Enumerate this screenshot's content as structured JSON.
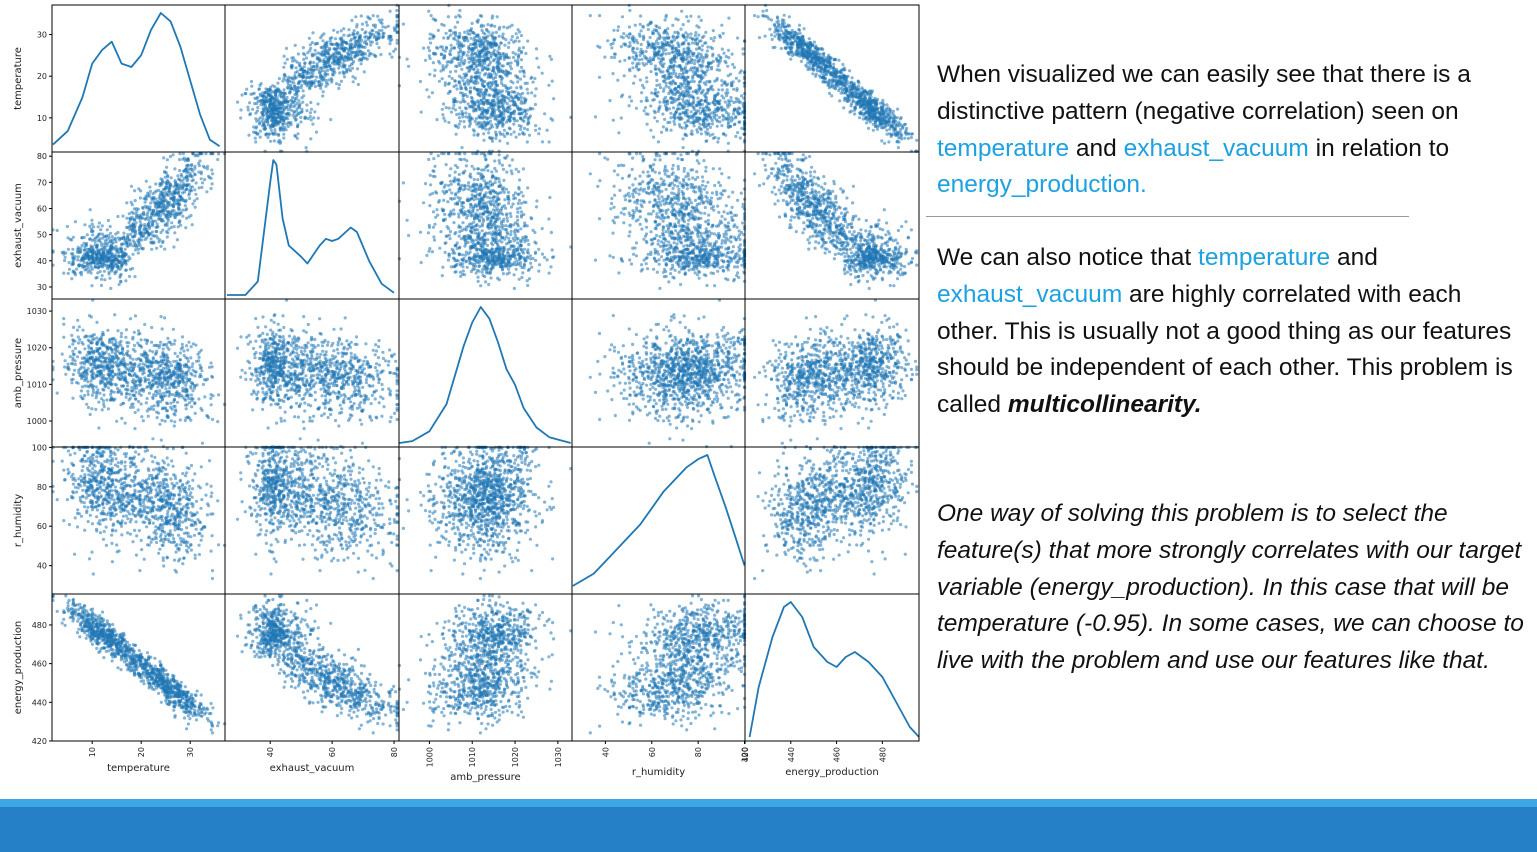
{
  "chart_data": {
    "type": "scatter",
    "subtype": "scatter-matrix",
    "variables": [
      "temperature",
      "exhaust_vacuum",
      "amb_pressure",
      "r_humidity",
      "energy_production"
    ],
    "diagonal": "kde",
    "point_color": "#1f77b4",
    "ranges": {
      "temperature": [
        1.8,
        37.1
      ],
      "exhaust_vacuum": [
        25.4,
        81.6
      ],
      "amb_pressure": [
        992.9,
        1033.3
      ],
      "r_humidity": [
        25.6,
        100.2
      ],
      "energy_production": [
        420,
        496
      ]
    },
    "ticks": {
      "temperature": [
        10,
        20,
        30
      ],
      "exhaust_vacuum": [
        30,
        40,
        50,
        60,
        70,
        80
      ],
      "exhaust_vacuum_x": [
        40,
        60,
        80
      ],
      "amb_pressure": [
        1000,
        1010,
        1020,
        1030
      ],
      "r_humidity": [
        40,
        60,
        80,
        100
      ],
      "energy_production": [
        420,
        440,
        460,
        480
      ]
    },
    "density_curves": {
      "temperature": [
        [
          2,
          0.002
        ],
        [
          5,
          0.01
        ],
        [
          8,
          0.03
        ],
        [
          10,
          0.05
        ],
        [
          12,
          0.058
        ],
        [
          14,
          0.063
        ],
        [
          16,
          0.05
        ],
        [
          18,
          0.048
        ],
        [
          20,
          0.055
        ],
        [
          22,
          0.07
        ],
        [
          24,
          0.08
        ],
        [
          26,
          0.075
        ],
        [
          28,
          0.06
        ],
        [
          30,
          0.04
        ],
        [
          32,
          0.02
        ],
        [
          34,
          0.005
        ],
        [
          36,
          0.001
        ]
      ],
      "exhaust_vacuum": [
        [
          26,
          0.0
        ],
        [
          32,
          0.0
        ],
        [
          36,
          0.006
        ],
        [
          38,
          0.028
        ],
        [
          40,
          0.05
        ],
        [
          41,
          0.06
        ],
        [
          42,
          0.058
        ],
        [
          44,
          0.034
        ],
        [
          46,
          0.022
        ],
        [
          50,
          0.017
        ],
        [
          52,
          0.014
        ],
        [
          56,
          0.022
        ],
        [
          58,
          0.025
        ],
        [
          60,
          0.024
        ],
        [
          62,
          0.025
        ],
        [
          66,
          0.03
        ],
        [
          68,
          0.028
        ],
        [
          72,
          0.015
        ],
        [
          76,
          0.005
        ],
        [
          80,
          0.001
        ]
      ],
      "amb_pressure": [
        [
          993,
          0.0
        ],
        [
          996,
          0.001
        ],
        [
          1000,
          0.006
        ],
        [
          1004,
          0.02
        ],
        [
          1008,
          0.05
        ],
        [
          1010,
          0.062
        ],
        [
          1012,
          0.07
        ],
        [
          1014,
          0.064
        ],
        [
          1016,
          0.052
        ],
        [
          1018,
          0.038
        ],
        [
          1020,
          0.03
        ],
        [
          1022,
          0.018
        ],
        [
          1025,
          0.008
        ],
        [
          1028,
          0.003
        ],
        [
          1033,
          0.0
        ]
      ],
      "r_humidity": [
        [
          26,
          0.001
        ],
        [
          35,
          0.004
        ],
        [
          45,
          0.01
        ],
        [
          55,
          0.016
        ],
        [
          60,
          0.02
        ],
        [
          65,
          0.024
        ],
        [
          70,
          0.027
        ],
        [
          75,
          0.03
        ],
        [
          80,
          0.032
        ],
        [
          84,
          0.033
        ],
        [
          87,
          0.028
        ],
        [
          92,
          0.02
        ],
        [
          96,
          0.013
        ],
        [
          100,
          0.006
        ]
      ],
      "energy_production": [
        [
          422,
          0.0
        ],
        [
          426,
          0.01
        ],
        [
          432,
          0.02
        ],
        [
          437,
          0.026
        ],
        [
          440,
          0.027
        ],
        [
          445,
          0.024
        ],
        [
          450,
          0.018
        ],
        [
          456,
          0.015
        ],
        [
          460,
          0.014
        ],
        [
          464,
          0.016
        ],
        [
          468,
          0.017
        ],
        [
          474,
          0.015
        ],
        [
          480,
          0.012
        ],
        [
          486,
          0.007
        ],
        [
          492,
          0.002
        ],
        [
          496,
          0.0
        ]
      ]
    },
    "pairwise": {
      "temperature_vs_exhaust_vacuum": "strong positive",
      "temperature_vs_energy_production": "strong negative (-0.95)",
      "exhaust_vacuum_vs_energy_production": "negative",
      "temperature_vs_r_humidity": "negative",
      "amb_pressure_vs_energy_production": "weak positive",
      "r_humidity_vs_energy_production": "weak positive"
    }
  },
  "text": {
    "p1": {
      "part1": "When visualized we can easily see that there is a distinctive pattern (negative correlation) seen on ",
      "hl1": "temperature",
      "part2": " and ",
      "hl2": "exhaust_vacuum",
      "part3": " in relation to ",
      "hl3": "energy_production."
    },
    "p2": {
      "hl1": "temperature",
      "part1_pre": "We can also notice that ",
      "part2": " and ",
      "hl2": "exhaust_vacuum",
      "part3": " are highly correlated with each other. This is usually not a good thing as our features should be independent of each other. This problem is called ",
      "bold": "multicollinearity."
    },
    "p3": "One way of solving this problem is to select the feature(s) that more strongly correlates with our target variable (energy_production). In this case that will be temperature (-0.95). In some cases, we can choose to live with the problem and use our features like that."
  },
  "colors": {
    "highlight": "#1da1e0",
    "footer_light": "#3da7e6",
    "footer_dark": "#2680c7"
  }
}
